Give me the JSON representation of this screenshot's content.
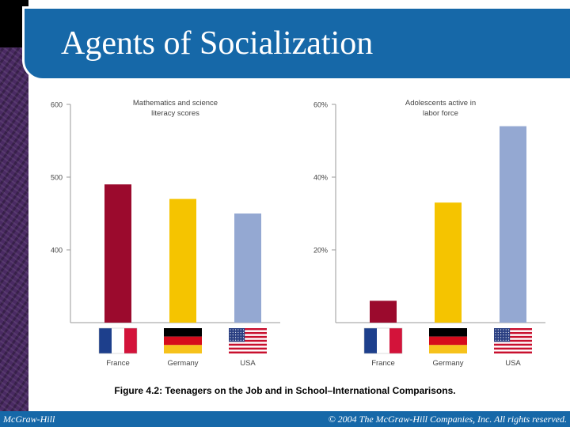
{
  "slide": {
    "title": "Agents of Socialization",
    "caption": "Figure 4.2: Teenagers on the Job and in School–International Comparisons.",
    "footer_left": "McGraw-Hill",
    "footer_right": "© 2004 The McGraw-Hill Companies, Inc. All rights reserved."
  },
  "chart_data": [
    {
      "type": "bar",
      "title": "Mathematics and science literacy scores",
      "title_lines": [
        "Mathematics and science",
        "literacy scores"
      ],
      "categories": [
        "France",
        "Germany",
        "USA"
      ],
      "values": [
        490,
        470,
        450
      ],
      "colors": [
        "#9b0a2d",
        "#f5c400",
        "#94a8d2"
      ],
      "yticks": [
        400,
        500,
        600
      ],
      "ytick_labels": [
        "400",
        "500",
        "600"
      ],
      "ylim": [
        300,
        600
      ]
    },
    {
      "type": "bar",
      "title": "Adolescents active in labor force",
      "title_lines": [
        "Adolescents active in",
        "labor force"
      ],
      "categories": [
        "France",
        "Germany",
        "USA"
      ],
      "values": [
        6,
        33,
        54
      ],
      "colors": [
        "#9b0a2d",
        "#f5c400",
        "#94a8d2"
      ],
      "yticks": [
        20,
        40,
        60
      ],
      "ytick_labels": [
        "20%",
        "40%",
        "60%"
      ],
      "ylim": [
        0,
        60
      ]
    }
  ]
}
